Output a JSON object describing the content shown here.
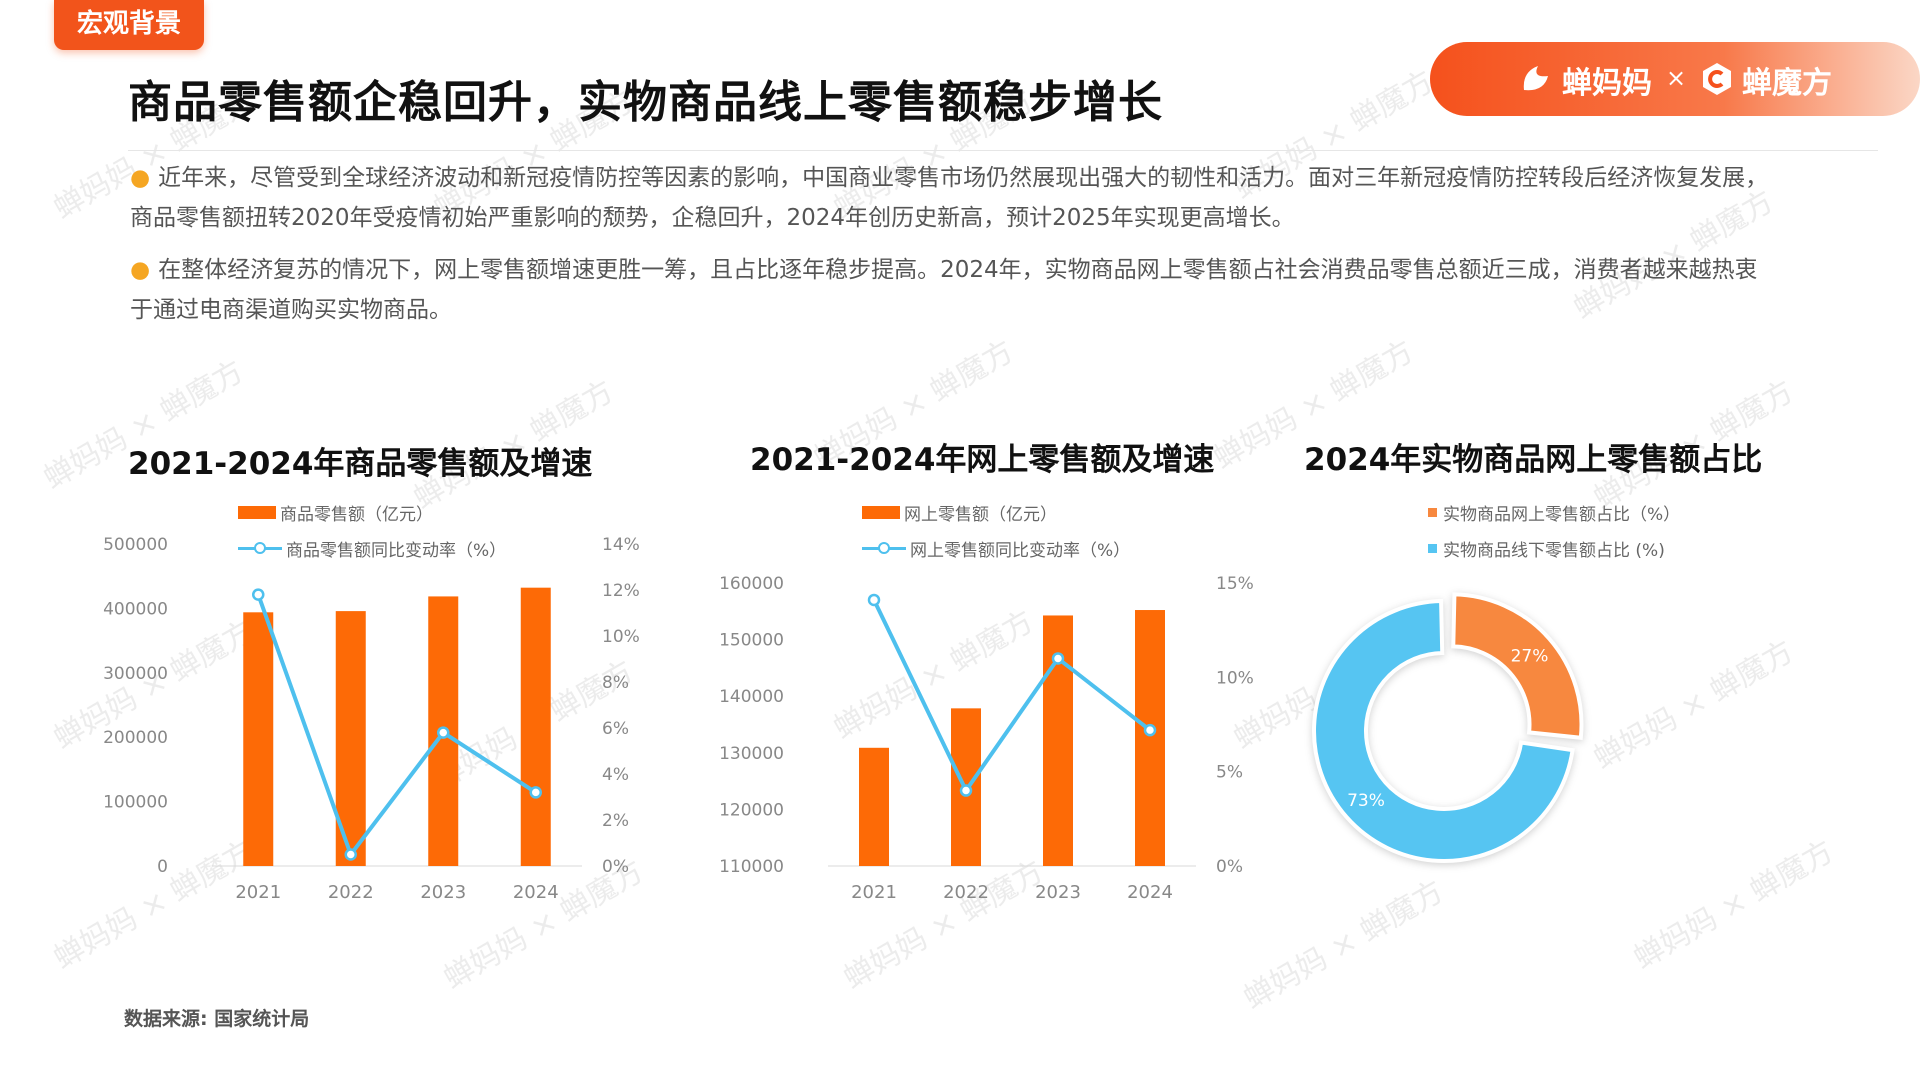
{
  "tag": "宏观背景",
  "title": "商品零售额企稳回升，实物商品线上零售额稳步增长",
  "brand": {
    "name1": "蝉妈妈",
    "sep": "×",
    "name2": "蝉魔方"
  },
  "paragraphs": [
    "近年来，尽管受到全球经济波动和新冠疫情防控等因素的影响，中国商业零售市场仍然展现出强大的韧性和活力。面对三年新冠疫情防控转段后经济恢复发展，商品零售额扭转2020年受疫情初始严重影响的颓势，企稳回升，2024年创历史新高，预计2025年实现更高增长。",
    "在整体经济复苏的情况下，网上零售额增速更胜一筹，且占比逐年稳步提高。2024年，实物商品网上零售额占社会消费品零售总额近三成，消费者越来越热衷于通过电商渠道购买实物商品。"
  ],
  "colors": {
    "bar": "#fd6a06",
    "line": "#4ec0ee",
    "accent": "#f2541b",
    "pie_online": "#f7883f",
    "pie_offline": "#56c5f2"
  },
  "chart_data": [
    {
      "type": "bar",
      "title": "2021-2024年商品零售额及增速",
      "categories": [
        "2021",
        "2022",
        "2023",
        "2024"
      ],
      "series": [
        {
          "name": "商品零售额（亿元）",
          "type": "bar",
          "axis": "left",
          "values": [
            393928,
            395792,
            418605,
            432177
          ]
        },
        {
          "name": "商品零售额同比变动率（%）",
          "type": "line",
          "axis": "right",
          "values": [
            11.8,
            0.5,
            5.8,
            3.2
          ]
        }
      ],
      "y_left": {
        "ticks": [
          "500000",
          "400000",
          "300000",
          "200000",
          "100000",
          "0"
        ],
        "range": [
          0,
          500000
        ]
      },
      "y_right": {
        "ticks": [
          "14%",
          "12%",
          "10%",
          "8%",
          "6%",
          "4%",
          "2%",
          "0%"
        ],
        "range": [
          0,
          14
        ]
      },
      "legend": "top"
    },
    {
      "type": "bar",
      "title": "2021-2024年网上零售额及增速",
      "categories": [
        "2021",
        "2022",
        "2023",
        "2024"
      ],
      "series": [
        {
          "name": "网上零售额（亿元）",
          "type": "bar",
          "axis": "left",
          "values": [
            130884,
            137853,
            154264,
            155225
          ]
        },
        {
          "name": "网上零售额同比变动率（%）",
          "type": "line",
          "axis": "right",
          "values": [
            14.1,
            4.0,
            11.0,
            7.2
          ]
        }
      ],
      "y_left": {
        "ticks": [
          "160000",
          "150000",
          "140000",
          "130000",
          "120000",
          "110000"
        ],
        "range": [
          110000,
          160000
        ]
      },
      "y_right": {
        "ticks": [
          "15%",
          "10%",
          "5%",
          "0%"
        ],
        "range": [
          0,
          15
        ]
      },
      "legend": "top"
    },
    {
      "type": "pie",
      "title": "2024年实物商品网上零售额占比",
      "slices": [
        {
          "name": "实物商品网上零售额占比（%）",
          "value": 27,
          "label": "27%"
        },
        {
          "name": "实物商品线下零售额占比 (%)",
          "value": 73,
          "label": "73%"
        }
      ],
      "legend": "top"
    }
  ],
  "source": "数据来源: 国家统计局",
  "watermark": "蝉妈妈 × 蝉魔方"
}
